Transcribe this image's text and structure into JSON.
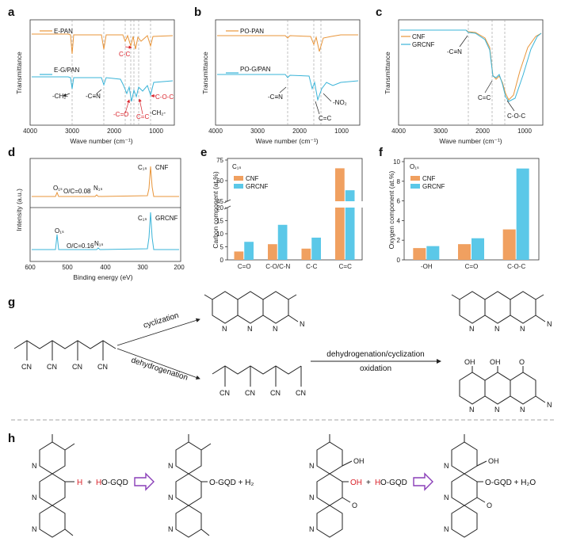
{
  "panels": {
    "a": {
      "letter": "a",
      "series": [
        "E-PAN",
        "E-G/PAN"
      ],
      "ylabel": "Transmittance",
      "xlabel": "Wave number (cm⁻¹)",
      "xticks": [
        "4000",
        "3000",
        "2000",
        "1000"
      ],
      "annotations": {
        "ch2_left": "-CH₂-",
        "cn": "-C≡N",
        "cc_red": "C-C",
        "co_red": "-C=O",
        "cc_double_red": "C=C",
        "coc_red": "C-O-C",
        "ch2_right": "-CH₂-"
      }
    },
    "b": {
      "letter": "b",
      "series": [
        "PO-PAN",
        "PO-G/PAN"
      ],
      "ylabel": "Transmittance",
      "xlabel": "Wave number (cm⁻¹)",
      "xticks": [
        "4000",
        "3000",
        "2000",
        "1000"
      ],
      "annotations": {
        "cn": "-C≡N",
        "no2": "-NO₂",
        "cc": "C=C"
      }
    },
    "c": {
      "letter": "c",
      "series": [
        "CNF",
        "GRCNF"
      ],
      "ylabel": "Transmittance",
      "xlabel": "Wave number (cm⁻¹)",
      "xticks": [
        "4000",
        "3000",
        "2000",
        "1000"
      ],
      "annotations": {
        "cn": "-C≡N",
        "cc": "C=C",
        "coc": "C-O-C"
      }
    },
    "d": {
      "letter": "d",
      "ylabel": "Intensity (a.u.)",
      "xlabel": "Binding energy  (eV)",
      "xticks": [
        "600",
        "500",
        "400",
        "300",
        "200"
      ],
      "top": {
        "name": "CNF",
        "o1s": "O₁ₛ",
        "n1s": "N₁ₛ",
        "c1s": "C₁ₛ",
        "ratio": "O/C=0.08"
      },
      "bottom": {
        "name": "GRCNF",
        "o1s": "O₁ₛ",
        "n1s": "N₁ₛ",
        "c1s": "C₁ₛ",
        "ratio": "O/C=0.16"
      }
    },
    "e": {
      "letter": "e",
      "inset": "C₁ₛ",
      "ylabel": "Carbon component (at.%)",
      "yticks_lower": [
        "0",
        "5",
        "10",
        "15",
        "20"
      ],
      "yticks_upper": [
        "45",
        "60",
        "75"
      ]
    },
    "f": {
      "letter": "f",
      "inset": "O₁ₛ",
      "ylabel": "Oxygen component (at.%)",
      "yticks": [
        "0",
        "2",
        "4",
        "6",
        "8",
        "10"
      ]
    },
    "g": {
      "letter": "g",
      "cyclization": "cyclization",
      "dehydrogenation": "dehydrogenation",
      "arrow_top": "dehydrogenation/cyclization",
      "arrow_bottom": "oxidation",
      "cn": "CN",
      "n": "N",
      "oh": "OH",
      "o": "O"
    },
    "h": {
      "letter": "h",
      "h_red": "H",
      "ho_red": "H",
      "ho_rest": "O-GQD",
      "plus": "+",
      "prod1": "O-GQD + H₂",
      "oh_red": "OH",
      "prod2": "O-GQD + H₂O",
      "oh": "OH",
      "o": "O",
      "n": "N"
    }
  },
  "chart_data": [
    {
      "panel": "e",
      "type": "bar",
      "categories": [
        "C=O",
        "C-O/C-N",
        "C-C",
        "C=C"
      ],
      "series": [
        {
          "name": "CNF",
          "values": [
            3.2,
            6.0,
            4.3,
            69.0
          ]
        },
        {
          "name": "GRCNF",
          "values": [
            6.9,
            13.4,
            8.5,
            53.0
          ]
        }
      ],
      "ylabel": "Carbon component (at.%)",
      "ylim": [
        0,
        75
      ],
      "axis_break": [
        20,
        45
      ],
      "legend": "top-left",
      "colors": {
        "CNF": "#f0a060",
        "GRCNF": "#5bc8e8"
      }
    },
    {
      "panel": "f",
      "type": "bar",
      "categories": [
        "-OH",
        "C=O",
        "C-O-C"
      ],
      "series": [
        {
          "name": "CNF",
          "values": [
            1.2,
            1.6,
            3.1
          ]
        },
        {
          "name": "GRCNF",
          "values": [
            1.4,
            2.2,
            9.3
          ]
        }
      ],
      "ylabel": "Oxygen component (at.%)",
      "ylim": [
        0,
        10
      ],
      "legend": "top-left",
      "colors": {
        "CNF": "#f0a060",
        "GRCNF": "#5bc8e8"
      }
    }
  ]
}
